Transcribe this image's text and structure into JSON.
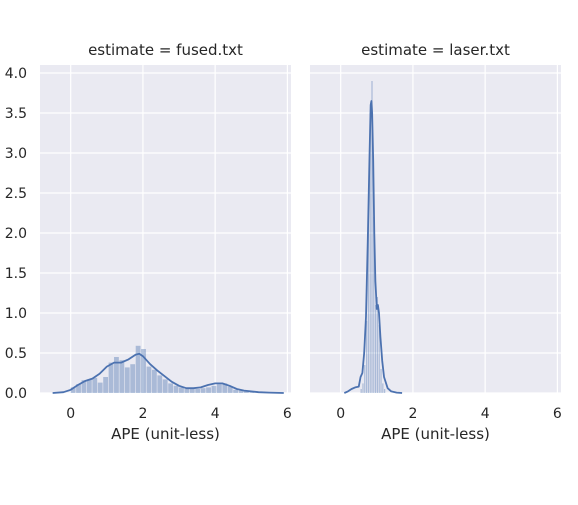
{
  "chart_data": {
    "type": "histogram-kde-facets",
    "ylim": [
      0,
      4.1
    ],
    "yticks": [
      0.0,
      0.5,
      1.0,
      1.5,
      2.0,
      2.5,
      3.0,
      3.5,
      4.0
    ],
    "ytick_labels": [
      "0.0",
      "0.5",
      "1.0",
      "1.5",
      "2.0",
      "2.5",
      "3.0",
      "3.5",
      "4.0"
    ],
    "grid": true,
    "colors": {
      "bar": "#4c72b0",
      "line": "#4c72b0",
      "panel_bg": "#eaeaf2",
      "grid": "#ffffff"
    },
    "panels": [
      {
        "title": "estimate = fused.txt",
        "xlabel": "APE (unit-less)",
        "xlim": [
          -0.85,
          6.1
        ],
        "xticks": [
          0,
          2,
          4,
          6
        ],
        "xtick_labels": [
          "0",
          "2",
          "4",
          "6"
        ],
        "histogram": {
          "bin_width": 0.15,
          "bins": [
            {
              "x": 0.0,
              "h": 0.07
            },
            {
              "x": 0.15,
              "h": 0.11
            },
            {
              "x": 0.3,
              "h": 0.16
            },
            {
              "x": 0.45,
              "h": 0.17
            },
            {
              "x": 0.6,
              "h": 0.19
            },
            {
              "x": 0.75,
              "h": 0.13
            },
            {
              "x": 0.9,
              "h": 0.2
            },
            {
              "x": 1.05,
              "h": 0.38
            },
            {
              "x": 1.2,
              "h": 0.45
            },
            {
              "x": 1.35,
              "h": 0.41
            },
            {
              "x": 1.5,
              "h": 0.32
            },
            {
              "x": 1.65,
              "h": 0.36
            },
            {
              "x": 1.8,
              "h": 0.59
            },
            {
              "x": 1.95,
              "h": 0.55
            },
            {
              "x": 2.1,
              "h": 0.33
            },
            {
              "x": 2.25,
              "h": 0.29
            },
            {
              "x": 2.4,
              "h": 0.22
            },
            {
              "x": 2.55,
              "h": 0.17
            },
            {
              "x": 2.7,
              "h": 0.12
            },
            {
              "x": 2.85,
              "h": 0.09
            },
            {
              "x": 3.0,
              "h": 0.07
            },
            {
              "x": 3.15,
              "h": 0.05
            },
            {
              "x": 3.3,
              "h": 0.05
            },
            {
              "x": 3.45,
              "h": 0.05
            },
            {
              "x": 3.6,
              "h": 0.06
            },
            {
              "x": 3.75,
              "h": 0.07
            },
            {
              "x": 3.9,
              "h": 0.09
            },
            {
              "x": 4.05,
              "h": 0.11
            },
            {
              "x": 4.2,
              "h": 0.12
            },
            {
              "x": 4.35,
              "h": 0.08
            },
            {
              "x": 4.5,
              "h": 0.04
            },
            {
              "x": 4.65,
              "h": 0.03
            },
            {
              "x": 4.8,
              "h": 0.02
            },
            {
              "x": 4.95,
              "h": 0.01
            }
          ]
        },
        "kde": {
          "x": [
            -0.5,
            -0.2,
            0.0,
            0.2,
            0.4,
            0.6,
            0.8,
            1.0,
            1.2,
            1.4,
            1.6,
            1.8,
            1.9,
            2.0,
            2.2,
            2.4,
            2.6,
            2.8,
            3.0,
            3.2,
            3.4,
            3.6,
            3.8,
            4.0,
            4.2,
            4.4,
            4.6,
            4.8,
            5.0,
            5.2,
            5.5,
            5.9
          ],
          "y": [
            0.0,
            0.01,
            0.04,
            0.1,
            0.15,
            0.18,
            0.24,
            0.33,
            0.38,
            0.38,
            0.42,
            0.48,
            0.49,
            0.46,
            0.36,
            0.28,
            0.21,
            0.14,
            0.09,
            0.06,
            0.06,
            0.07,
            0.1,
            0.12,
            0.12,
            0.09,
            0.05,
            0.03,
            0.02,
            0.01,
            0.005,
            0.0
          ]
        }
      },
      {
        "title": "estimate = laser.txt",
        "xlabel": "APE (unit-less)",
        "xlim": [
          -0.85,
          6.1
        ],
        "xticks": [
          0,
          2,
          4,
          6
        ],
        "xtick_labels": [
          "0",
          "2",
          "4",
          "6"
        ],
        "histogram": {
          "bin_width": 0.05,
          "bins": [
            {
              "x": 0.55,
              "h": 0.05
            },
            {
              "x": 0.6,
              "h": 0.12
            },
            {
              "x": 0.65,
              "h": 0.35
            },
            {
              "x": 0.7,
              "h": 0.9
            },
            {
              "x": 0.75,
              "h": 2.1
            },
            {
              "x": 0.8,
              "h": 3.5
            },
            {
              "x": 0.85,
              "h": 3.9
            },
            {
              "x": 0.9,
              "h": 2.2
            },
            {
              "x": 0.95,
              "h": 1.1
            },
            {
              "x": 1.0,
              "h": 1.2
            },
            {
              "x": 1.05,
              "h": 0.85
            },
            {
              "x": 1.1,
              "h": 0.3
            },
            {
              "x": 1.15,
              "h": 0.12
            },
            {
              "x": 1.2,
              "h": 0.05
            }
          ]
        },
        "kde": {
          "x": [
            0.1,
            0.2,
            0.3,
            0.4,
            0.5,
            0.55,
            0.6,
            0.65,
            0.7,
            0.75,
            0.8,
            0.83,
            0.85,
            0.87,
            0.9,
            0.93,
            0.96,
            1.0,
            1.03,
            1.06,
            1.1,
            1.15,
            1.2,
            1.3,
            1.4,
            1.55,
            1.7
          ],
          "y": [
            0.0,
            0.02,
            0.05,
            0.07,
            0.08,
            0.2,
            0.25,
            0.5,
            0.95,
            1.9,
            3.0,
            3.6,
            3.65,
            3.5,
            2.9,
            2.0,
            1.4,
            1.05,
            1.1,
            1.0,
            0.7,
            0.4,
            0.2,
            0.06,
            0.02,
            0.005,
            0.0
          ]
        }
      }
    ]
  }
}
